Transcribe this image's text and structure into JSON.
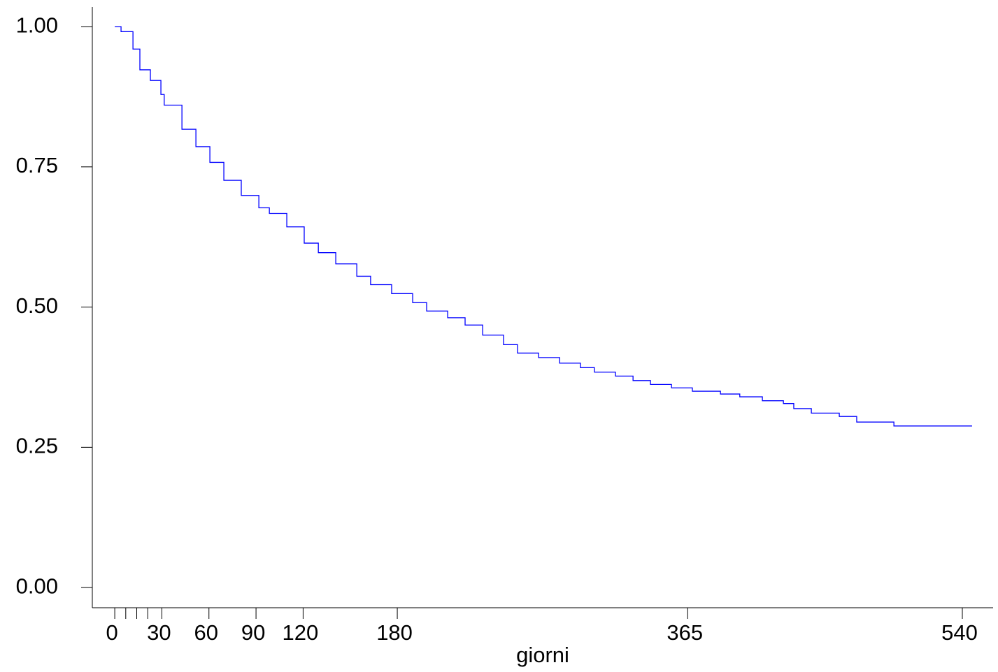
{
  "chart_data": {
    "type": "step",
    "x_label": "giorni",
    "x": [
      0,
      4,
      11.6,
      16,
      22.7,
      29.4,
      31.5,
      42.8,
      51.7,
      60.6,
      69.5,
      80.6,
      91.8,
      98.5,
      109.6,
      120.7,
      129.7,
      140.8,
      154.2,
      163,
      176.4,
      189.8,
      198.7,
      212.1,
      223.2,
      234.4,
      247.7,
      256.6,
      270,
      283.4,
      296.7,
      305.6,
      319,
      330.2,
      341.3,
      354.7,
      368,
      385.9,
      398.2,
      412.6,
      426,
      432.6,
      443.8,
      461.6,
      472.7,
      496.4,
      546.2
    ],
    "series": [
      {
        "color": "#0000ff",
        "values": [
          1.0,
          0.991,
          0.96,
          0.923,
          0.904,
          0.879,
          0.86,
          0.817,
          0.786,
          0.758,
          0.726,
          0.699,
          0.677,
          0.667,
          0.643,
          0.614,
          0.597,
          0.577,
          0.555,
          0.54,
          0.524,
          0.508,
          0.493,
          0.481,
          0.468,
          0.45,
          0.433,
          0.418,
          0.41,
          0.4,
          0.392,
          0.384,
          0.377,
          0.369,
          0.362,
          0.356,
          0.35,
          0.345,
          0.34,
          0.333,
          0.328,
          0.319,
          0.311,
          0.305,
          0.295,
          0.288,
          0.288
        ]
      }
    ],
    "xlim": [
      -14.3,
      559.6
    ],
    "xticks": [
      0,
      30,
      60,
      90,
      120,
      180,
      365,
      540
    ],
    "xminorticks": [
      7,
      14,
      21
    ],
    "ylim": [
      -0.036,
      1.035
    ],
    "yticks": [
      {
        "value": 0,
        "label": "0.00"
      },
      {
        "value": 0.25,
        "label": "0.25"
      },
      {
        "value": 0.5,
        "label": "0.50"
      },
      {
        "value": 0.75,
        "label": "0.75"
      },
      {
        "value": 1,
        "label": "1.00"
      }
    ]
  }
}
